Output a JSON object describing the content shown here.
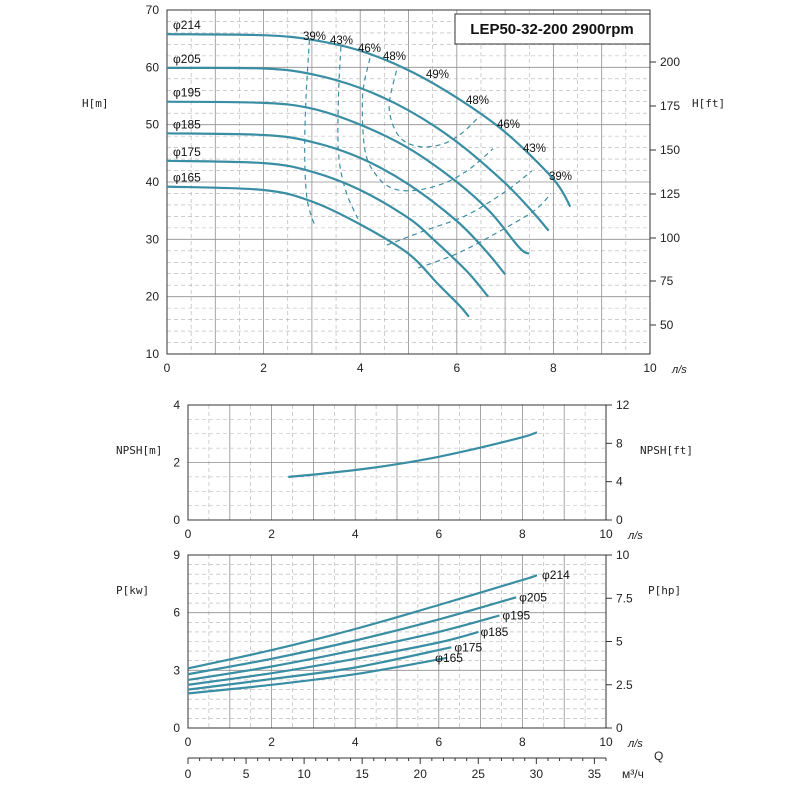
{
  "title": "LEP50-32-200 2900rpm",
  "colors": {
    "curve": "#3a8ea3"
  },
  "chart_data": [
    {
      "id": "head",
      "type": "line",
      "ylabel": "H[m]",
      "ylabel_right": "H[ft]",
      "xunit": "л/s",
      "xlim": [
        0,
        10
      ],
      "ylim": [
        10,
        70
      ],
      "xticks": [
        0,
        2,
        4,
        6,
        8,
        10
      ],
      "yticks": [
        10,
        20,
        30,
        40,
        50,
        60,
        70
      ],
      "yticks_right": [
        50,
        75,
        100,
        125,
        150,
        175,
        200
      ],
      "series": [
        {
          "name": "φ214",
          "points": [
            [
              0,
              65.8
            ],
            [
              2,
              65.6
            ],
            [
              3,
              64.8
            ],
            [
              4,
              62.9
            ],
            [
              5,
              59.5
            ],
            [
              6,
              54.7
            ],
            [
              7,
              48.7
            ],
            [
              8,
              40.5
            ],
            [
              8.35,
              35.7
            ]
          ]
        },
        {
          "name": "φ205",
          "points": [
            [
              0,
              59.9
            ],
            [
              2,
              59.8
            ],
            [
              3,
              58.8
            ],
            [
              4,
              56.4
            ],
            [
              5,
              52.5
            ],
            [
              6,
              47.0
            ],
            [
              7,
              39.8
            ],
            [
              7.6,
              34.5
            ],
            [
              7.9,
              31.5
            ]
          ]
        },
        {
          "name": "φ195",
          "points": [
            [
              0,
              54.0
            ],
            [
              2,
              53.8
            ],
            [
              3,
              52.8
            ],
            [
              4,
              50.0
            ],
            [
              5,
              45.9
            ],
            [
              6,
              40.0
            ],
            [
              6.7,
              34.7
            ],
            [
              7.3,
              28.5
            ],
            [
              7.5,
              27.5
            ]
          ]
        },
        {
          "name": "φ185",
          "points": [
            [
              0,
              48.5
            ],
            [
              2,
              48.2
            ],
            [
              3,
              47.0
            ],
            [
              4,
              44.2
            ],
            [
              5,
              39.6
            ],
            [
              6,
              33.2
            ],
            [
              6.6,
              28.0
            ],
            [
              7.0,
              23.9
            ]
          ]
        },
        {
          "name": "φ175",
          "points": [
            [
              0,
              43.7
            ],
            [
              2,
              43.3
            ],
            [
              3,
              41.8
            ],
            [
              4,
              38.6
            ],
            [
              5,
              33.7
            ],
            [
              5.5,
              30.1
            ],
            [
              6.2,
              24.5
            ],
            [
              6.65,
              20.0
            ]
          ]
        },
        {
          "name": "φ165",
          "points": [
            [
              0,
              39.2
            ],
            [
              2,
              38.6
            ],
            [
              3,
              36.6
            ],
            [
              4,
              32.6
            ],
            [
              5,
              27.5
            ],
            [
              5.6,
              22.3
            ],
            [
              6.05,
              18.5
            ],
            [
              6.25,
              16.5
            ]
          ]
        }
      ],
      "efficiency_lines": [
        {
          "name": "39%",
          "points": [
            [
              2.95,
              64.8
            ],
            [
              2.88,
              55
            ],
            [
              2.85,
              45
            ],
            [
              2.9,
              37
            ],
            [
              3.05,
              32.6
            ]
          ]
        },
        {
          "name": "43%",
          "points": [
            [
              3.6,
              63.6
            ],
            [
              3.55,
              55
            ],
            [
              3.55,
              45
            ],
            [
              3.7,
              38.5
            ],
            [
              3.95,
              33.6
            ]
          ]
        },
        {
          "name": "46%",
          "points": [
            [
              4.2,
              61.6
            ],
            [
              4.05,
              55
            ],
            [
              4.1,
              45.5
            ],
            [
              4.35,
              41
            ],
            [
              4.7,
              38.8
            ],
            [
              5.2,
              38.6
            ],
            [
              5.8,
              40
            ],
            [
              6.3,
              42.5
            ],
            [
              6.75,
              45.8
            ]
          ]
        },
        {
          "name": "48%",
          "points": [
            [
              4.75,
              59.4
            ],
            [
              4.6,
              53
            ],
            [
              4.8,
              48
            ],
            [
              5.2,
              46.2
            ],
            [
              5.7,
              46.6
            ],
            [
              6.1,
              48.5
            ],
            [
              6.45,
              51.3
            ]
          ]
        },
        {
          "name": "43% ",
          "points": [
            [
              4.55,
              29
            ],
            [
              5.3,
              31.4
            ],
            [
              6.2,
              34.2
            ],
            [
              7.0,
              38.3
            ],
            [
              7.55,
              41.9
            ]
          ]
        },
        {
          "name": "39% ",
          "points": [
            [
              5.2,
              25
            ],
            [
              6.0,
              27.5
            ],
            [
              6.8,
              31
            ],
            [
              7.6,
              35
            ],
            [
              7.95,
              38
            ]
          ]
        }
      ],
      "efficiency_labels": [
        "39%",
        "43%",
        "46%",
        "48%",
        "49%",
        "48%",
        "46%",
        "43%",
        "39%"
      ]
    },
    {
      "id": "npsh",
      "type": "line",
      "ylabel": "NPSH[m]",
      "ylabel_right": "NPSH[ft]",
      "xunit": "л/s",
      "xlim": [
        0,
        10
      ],
      "ylim": [
        0,
        4
      ],
      "xticks": [
        0,
        2,
        4,
        6,
        8,
        10
      ],
      "yticks": [
        0,
        2,
        4
      ],
      "yticks_right": [
        0,
        4,
        8,
        12
      ],
      "series": [
        {
          "name": "NPSH",
          "points": [
            [
              2.4,
              1.5
            ],
            [
              3,
              1.58
            ],
            [
              4,
              1.74
            ],
            [
              5,
              1.94
            ],
            [
              6,
              2.2
            ],
            [
              7,
              2.52
            ],
            [
              8,
              2.88
            ],
            [
              8.35,
              3.05
            ]
          ]
        }
      ]
    },
    {
      "id": "power",
      "type": "line",
      "ylabel": "P[kw]",
      "ylabel_right": "P[hp]",
      "xunit": "л/s",
      "xlim": [
        0,
        10
      ],
      "ylim": [
        0,
        9
      ],
      "xticks": [
        0,
        2,
        4,
        6,
        8,
        10
      ],
      "yticks": [
        0,
        3,
        6,
        9
      ],
      "yticks_right": [
        0,
        2.5,
        5,
        7.5,
        10
      ],
      "x2label": "Q",
      "x2unit": "м³/ч",
      "x2ticks": [
        0,
        5,
        10,
        15,
        20,
        25,
        30,
        35
      ],
      "series": [
        {
          "name": "φ214",
          "points": [
            [
              0,
              3.1
            ],
            [
              2,
              4.05
            ],
            [
              4,
              5.15
            ],
            [
              6,
              6.4
            ],
            [
              8,
              7.7
            ],
            [
              8.35,
              7.95
            ]
          ]
        },
        {
          "name": "φ205",
          "points": [
            [
              0,
              2.8
            ],
            [
              2,
              3.6
            ],
            [
              4,
              4.55
            ],
            [
              6,
              5.65
            ],
            [
              7.85,
              6.8
            ]
          ]
        },
        {
          "name": "φ195",
          "points": [
            [
              0,
              2.5
            ],
            [
              2,
              3.2
            ],
            [
              4,
              4.05
            ],
            [
              6,
              5.0
            ],
            [
              7.45,
              5.85
            ]
          ]
        },
        {
          "name": "φ185",
          "points": [
            [
              0,
              2.25
            ],
            [
              2,
              2.85
            ],
            [
              4,
              3.6
            ],
            [
              6,
              4.45
            ],
            [
              6.95,
              5.0
            ]
          ]
        },
        {
          "name": "φ175",
          "points": [
            [
              0,
              2.0
            ],
            [
              2,
              2.55
            ],
            [
              4,
              3.15
            ],
            [
              6.3,
              4.2
            ]
          ]
        },
        {
          "name": "φ165",
          "points": [
            [
              0,
              1.8
            ],
            [
              2,
              2.25
            ],
            [
              4,
              2.8
            ],
            [
              6.2,
              3.65
            ]
          ]
        }
      ]
    }
  ]
}
